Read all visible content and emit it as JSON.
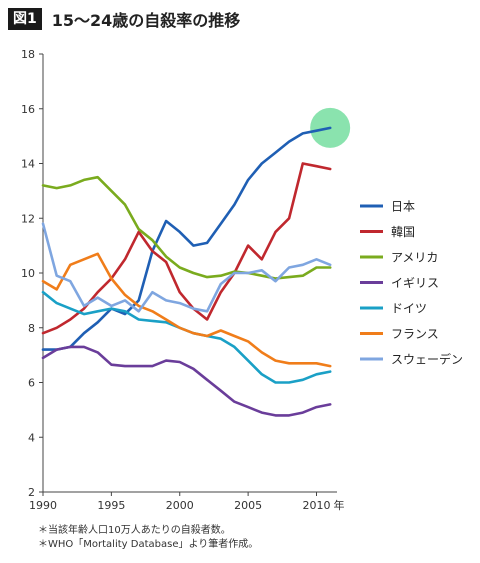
{
  "header": {
    "badge": "図1",
    "title": "15〜24歳の自殺率の推移"
  },
  "notes": [
    "＊当該年齢人口10万人あたりの自殺者数。",
    "＊WHO「Mortality Database」より筆者作成。"
  ],
  "highlight": {
    "x": 2011,
    "y": 15.3,
    "color": "#7de0a5"
  },
  "chart_data": {
    "type": "line",
    "title": "15〜24歳の自殺率の推移",
    "xlabel": "",
    "ylabel": "",
    "x_unit": "年",
    "xlim": [
      1990,
      2011.5
    ],
    "ylim": [
      2,
      18
    ],
    "x_ticks": [
      1990,
      1995,
      2000,
      2005,
      2010
    ],
    "y_ticks": [
      2,
      4,
      6,
      8,
      10,
      12,
      14,
      16,
      18
    ],
    "grid": false,
    "legend_position": "right",
    "series": [
      {
        "name": "日本",
        "color": "#1f5fb4",
        "points": [
          [
            1990,
            7.2
          ],
          [
            1991,
            7.2
          ],
          [
            1992,
            7.3
          ],
          [
            1993,
            7.8
          ],
          [
            1994,
            8.2
          ],
          [
            1995,
            8.7
          ],
          [
            1996,
            8.5
          ],
          [
            1997,
            9.0
          ],
          [
            1998,
            10.8
          ],
          [
            1999,
            11.9
          ],
          [
            2000,
            11.5
          ],
          [
            2001,
            11.0
          ],
          [
            2002,
            11.1
          ],
          [
            2003,
            11.8
          ],
          [
            2004,
            12.5
          ],
          [
            2005,
            13.4
          ],
          [
            2006,
            14.0
          ],
          [
            2007,
            14.4
          ],
          [
            2008,
            14.8
          ],
          [
            2009,
            15.1
          ],
          [
            2010,
            15.2
          ],
          [
            2011,
            15.3
          ]
        ]
      },
      {
        "name": "韓国",
        "color": "#c0282e",
        "points": [
          [
            1990,
            7.8
          ],
          [
            1991,
            8.0
          ],
          [
            1992,
            8.3
          ],
          [
            1993,
            8.7
          ],
          [
            1994,
            9.3
          ],
          [
            1995,
            9.8
          ],
          [
            1996,
            10.5
          ],
          [
            1997,
            11.5
          ],
          [
            1998,
            10.8
          ],
          [
            1999,
            10.4
          ],
          [
            2000,
            9.3
          ],
          [
            2001,
            8.7
          ],
          [
            2002,
            8.3
          ],
          [
            2003,
            9.3
          ],
          [
            2004,
            10.0
          ],
          [
            2005,
            11.0
          ],
          [
            2006,
            10.5
          ],
          [
            2007,
            11.5
          ],
          [
            2008,
            12.0
          ],
          [
            2009,
            14.0
          ],
          [
            2010,
            13.9
          ],
          [
            2011,
            13.8
          ]
        ]
      },
      {
        "name": "アメリカ",
        "color": "#7aab1e",
        "points": [
          [
            1990,
            13.2
          ],
          [
            1991,
            13.1
          ],
          [
            1992,
            13.2
          ],
          [
            1993,
            13.4
          ],
          [
            1994,
            13.5
          ],
          [
            1995,
            13.0
          ],
          [
            1996,
            12.5
          ],
          [
            1997,
            11.6
          ],
          [
            1998,
            11.2
          ],
          [
            1999,
            10.6
          ],
          [
            2000,
            10.2
          ],
          [
            2001,
            10.0
          ],
          [
            2002,
            9.85
          ],
          [
            2003,
            9.9
          ],
          [
            2004,
            10.05
          ],
          [
            2005,
            10.0
          ],
          [
            2006,
            9.9
          ],
          [
            2007,
            9.8
          ],
          [
            2008,
            9.85
          ],
          [
            2009,
            9.9
          ],
          [
            2010,
            10.2
          ],
          [
            2011,
            10.2
          ]
        ]
      },
      {
        "name": "イギリス",
        "color": "#6a3d9a",
        "points": [
          [
            1990,
            6.9
          ],
          [
            1991,
            7.2
          ],
          [
            1992,
            7.3
          ],
          [
            1993,
            7.3
          ],
          [
            1994,
            7.1
          ],
          [
            1995,
            6.65
          ],
          [
            1996,
            6.6
          ],
          [
            1997,
            6.6
          ],
          [
            1998,
            6.6
          ],
          [
            1999,
            6.8
          ],
          [
            2000,
            6.75
          ],
          [
            2001,
            6.5
          ],
          [
            2002,
            6.1
          ],
          [
            2003,
            5.7
          ],
          [
            2004,
            5.3
          ],
          [
            2005,
            5.1
          ],
          [
            2006,
            4.9
          ],
          [
            2007,
            4.8
          ],
          [
            2008,
            4.8
          ],
          [
            2009,
            4.9
          ],
          [
            2010,
            5.1
          ],
          [
            2011,
            5.2
          ]
        ]
      },
      {
        "name": "ドイツ",
        "color": "#1aa0c6",
        "points": [
          [
            1990,
            9.3
          ],
          [
            1991,
            8.9
          ],
          [
            1992,
            8.7
          ],
          [
            1993,
            8.5
          ],
          [
            1994,
            8.6
          ],
          [
            1995,
            8.7
          ],
          [
            1996,
            8.6
          ],
          [
            1997,
            8.3
          ],
          [
            1998,
            8.25
          ],
          [
            1999,
            8.2
          ],
          [
            2000,
            8.0
          ],
          [
            2001,
            7.8
          ],
          [
            2002,
            7.7
          ],
          [
            2003,
            7.6
          ],
          [
            2004,
            7.3
          ],
          [
            2005,
            6.8
          ],
          [
            2006,
            6.3
          ],
          [
            2007,
            6.0
          ],
          [
            2008,
            6.0
          ],
          [
            2009,
            6.1
          ],
          [
            2010,
            6.3
          ],
          [
            2011,
            6.4
          ]
        ]
      },
      {
        "name": "フランス",
        "color": "#f07d1a",
        "points": [
          [
            1990,
            9.7
          ],
          [
            1991,
            9.4
          ],
          [
            1992,
            10.3
          ],
          [
            1993,
            10.5
          ],
          [
            1994,
            10.7
          ],
          [
            1995,
            9.8
          ],
          [
            1996,
            9.2
          ],
          [
            1997,
            8.8
          ],
          [
            1998,
            8.6
          ],
          [
            1999,
            8.3
          ],
          [
            2000,
            8.0
          ],
          [
            2001,
            7.8
          ],
          [
            2002,
            7.7
          ],
          [
            2003,
            7.9
          ],
          [
            2004,
            7.7
          ],
          [
            2005,
            7.5
          ],
          [
            2006,
            7.1
          ],
          [
            2007,
            6.8
          ],
          [
            2008,
            6.7
          ],
          [
            2009,
            6.7
          ],
          [
            2010,
            6.7
          ],
          [
            2011,
            6.6
          ]
        ]
      },
      {
        "name": "スウェーデン",
        "color": "#7fa6e0",
        "points": [
          [
            1990,
            11.8
          ],
          [
            1991,
            9.9
          ],
          [
            1992,
            9.7
          ],
          [
            1993,
            8.8
          ],
          [
            1994,
            9.1
          ],
          [
            1995,
            8.8
          ],
          [
            1996,
            9.0
          ],
          [
            1997,
            8.6
          ],
          [
            1998,
            9.3
          ],
          [
            1999,
            9.0
          ],
          [
            2000,
            8.9
          ],
          [
            2001,
            8.7
          ],
          [
            2002,
            8.6
          ],
          [
            2003,
            9.6
          ],
          [
            2004,
            10.0
          ],
          [
            2005,
            10.0
          ],
          [
            2006,
            10.1
          ],
          [
            2007,
            9.7
          ],
          [
            2008,
            10.2
          ],
          [
            2009,
            10.3
          ],
          [
            2010,
            10.5
          ],
          [
            2011,
            10.3
          ]
        ]
      }
    ]
  }
}
